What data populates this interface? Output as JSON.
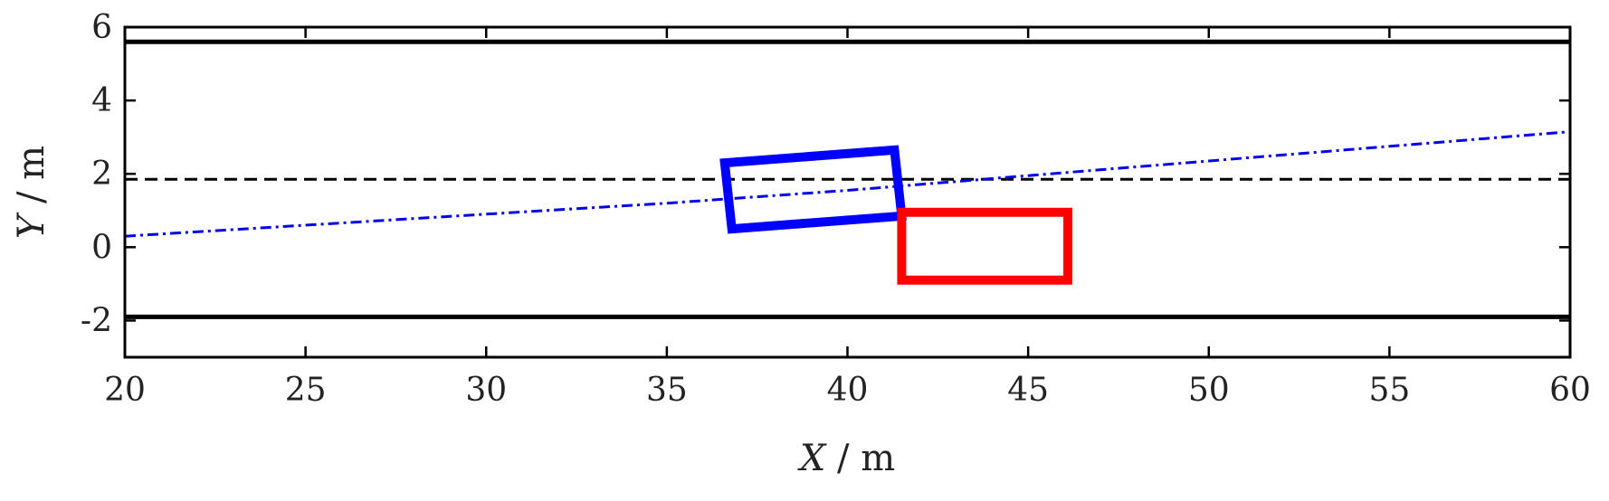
{
  "chart_data": {
    "type": "line",
    "xlabel": {
      "var": "X",
      "unit": " / m"
    },
    "ylabel": {
      "var": "Y",
      "unit": " / m"
    },
    "xlim": [
      20,
      60
    ],
    "ylim": [
      -3,
      6
    ],
    "xticks": [
      20,
      25,
      30,
      35,
      40,
      45,
      50,
      55,
      60
    ],
    "yticks": [
      -2,
      0,
      2,
      4,
      6
    ],
    "grid": false,
    "series": [
      {
        "kind": "solid-line",
        "color": "#000000",
        "x": [
          20,
          60
        ],
        "y": [
          5.6,
          5.6
        ]
      },
      {
        "kind": "solid-line",
        "color": "#000000",
        "x": [
          20,
          60
        ],
        "y": [
          -1.9,
          -1.9
        ]
      },
      {
        "kind": "dashed-line",
        "color": "#000000",
        "x": [
          20,
          60
        ],
        "y": [
          1.85,
          1.85
        ]
      },
      {
        "kind": "dash-dot-trajectory",
        "color": "#0000ee",
        "x": [
          20,
          25,
          30,
          35,
          40,
          45,
          50,
          55,
          60
        ],
        "y": [
          0.3,
          0.6,
          0.9,
          1.2,
          1.55,
          1.95,
          2.35,
          2.75,
          3.15
        ]
      },
      {
        "kind": "polygon",
        "color": "#0000ff",
        "x": [
          36.6,
          41.3,
          41.5,
          36.8
        ],
        "y": [
          2.3,
          2.65,
          0.85,
          0.5
        ]
      },
      {
        "kind": "polygon",
        "color": "#ff0000",
        "x": [
          41.5,
          46.1,
          46.1,
          41.5
        ],
        "y": [
          0.95,
          0.95,
          -0.9,
          -0.9
        ]
      }
    ]
  }
}
